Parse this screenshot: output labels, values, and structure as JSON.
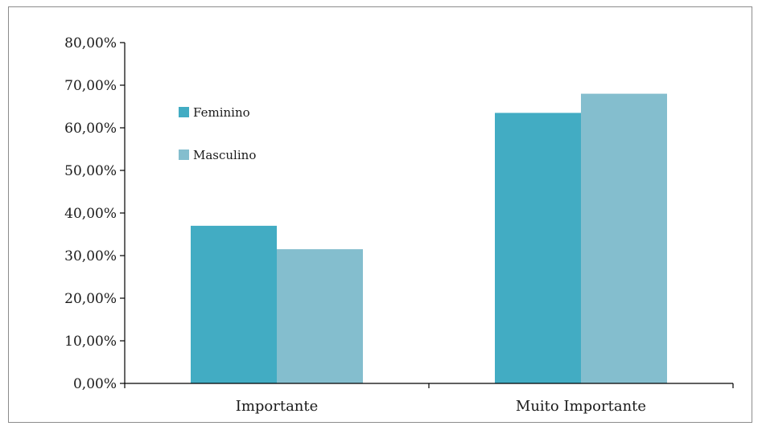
{
  "chart_data": {
    "type": "bar",
    "categories": [
      "Importante",
      "Muito Importante"
    ],
    "series": [
      {
        "name": "Feminino",
        "values": [
          37.0,
          63.5
        ],
        "color": "#42acc3"
      },
      {
        "name": "Masculino",
        "values": [
          31.5,
          68.0
        ],
        "color": "#84bece"
      }
    ],
    "title": "",
    "xlabel": "",
    "ylabel": "",
    "ylim": [
      0,
      80
    ],
    "yticks": [
      "0,00%",
      "10,00%",
      "20,00%",
      "30,00%",
      "40,00%",
      "50,00%",
      "60,00%",
      "70,00%",
      "80,00%"
    ],
    "grid": false,
    "legend_position": "top-left inside plot"
  }
}
